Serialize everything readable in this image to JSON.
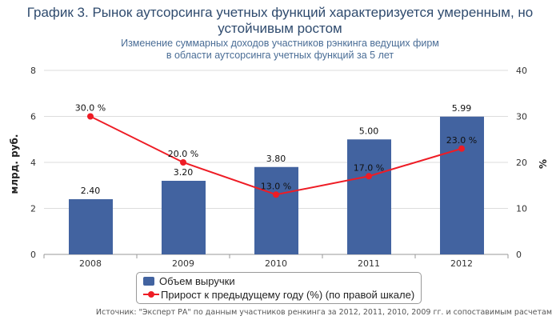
{
  "title": "График 3. Рынок аутсорсинга учетных функций характеризуется умеренным, но устойчивым ростом",
  "subtitle_line1": "Изменение суммарных доходов участников рэнкинга ведущих фирм",
  "subtitle_line2": "в области аутсорсинга учетных функций за 5 лет",
  "source": "Источник: \"Эксперт РА\" по данным участников ренкинга за 2012, 2011, 2010, 2009 гг. и сопоставимым расчетам",
  "chart_data": {
    "type": "bar+line",
    "categories": [
      "2008",
      "2009",
      "2010",
      "2011",
      "2012"
    ],
    "ylabel": "млрд. руб.",
    "y2label": "%",
    "ylim": [
      0,
      8
    ],
    "y2lim": [
      0,
      40
    ],
    "yticks": [
      0,
      2,
      4,
      6,
      8
    ],
    "y2ticks": [
      0,
      10,
      20,
      30,
      40
    ],
    "grid": "horizontal",
    "legend_position": "bottom",
    "series": [
      {
        "name": "Объем выручки",
        "type": "bar",
        "axis": "left",
        "color": "#4263a0",
        "values": [
          2.4,
          3.2,
          3.8,
          5.0,
          5.99
        ],
        "labels": [
          "2.40",
          "3.20",
          "3.80",
          "5.00",
          "5.99"
        ]
      },
      {
        "name": "Прирост к предыдущему году (%) (по правой шкале)",
        "type": "line",
        "axis": "right",
        "color": "#ee1c25",
        "values": [
          30.0,
          20.0,
          13.0,
          17.0,
          23.0
        ],
        "labels": [
          "30.0 %",
          "20.0 %",
          "13.0 %",
          "17.0 %",
          "23.0 %"
        ]
      }
    ]
  }
}
